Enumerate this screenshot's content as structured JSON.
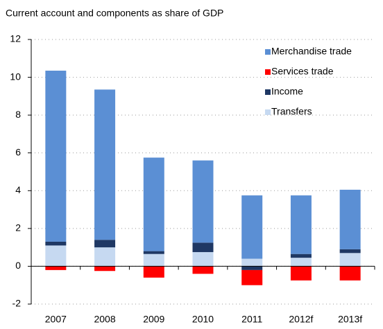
{
  "chart_data": {
    "type": "stacked_bar",
    "title": "Current account and components as share of GDP",
    "categories": [
      "2007",
      "2008",
      "2009",
      "2010",
      "2011",
      "2012f",
      "2013f"
    ],
    "series": [
      {
        "name": "Merchandise trade",
        "color": "#5b8fd4",
        "values": [
          9.05,
          7.95,
          4.95,
          4.35,
          3.35,
          3.1,
          3.15
        ]
      },
      {
        "name": "Services trade",
        "color": "#ff0000",
        "values": [
          -0.2,
          -0.25,
          -0.6,
          -0.4,
          -0.8,
          -0.75,
          -0.75
        ]
      },
      {
        "name": "Income",
        "color": "#1f3864",
        "values": [
          0.2,
          0.4,
          0.15,
          0.5,
          -0.2,
          0.2,
          0.2
        ]
      },
      {
        "name": "Transfers",
        "color": "#c6d9f1",
        "values": [
          1.1,
          1.0,
          0.65,
          0.75,
          0.4,
          0.45,
          0.7
        ]
      }
    ],
    "ylim": [
      -2,
      12
    ],
    "yticks": [
      -2,
      0,
      2,
      4,
      6,
      8,
      10,
      12
    ],
    "grid": true,
    "legend": "top-right"
  }
}
